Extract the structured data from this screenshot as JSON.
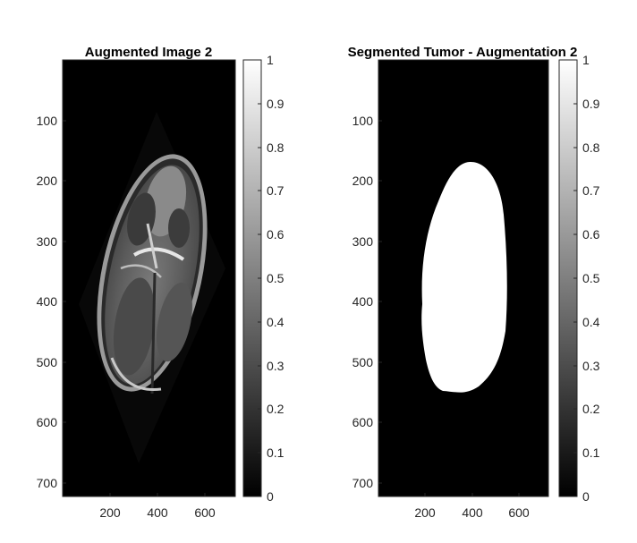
{
  "panels": [
    {
      "title": "Augmented Image 2",
      "content": "mri-scan",
      "y_ticks": [
        "100",
        "200",
        "300",
        "400",
        "500",
        "600",
        "700"
      ],
      "x_ticks": [
        "200",
        "400",
        "600"
      ],
      "colorbar_ticks": [
        "0",
        "0.1",
        "0.2",
        "0.3",
        "0.4",
        "0.5",
        "0.6",
        "0.7",
        "0.8",
        "0.9",
        "1"
      ]
    },
    {
      "title": "Segmented Tumor - Augmentation 2",
      "content": "binary-mask",
      "y_ticks": [
        "100",
        "200",
        "300",
        "400",
        "500",
        "600",
        "700"
      ],
      "x_ticks": [
        "200",
        "400",
        "600"
      ],
      "colorbar_ticks": [
        "0",
        "0.1",
        "0.2",
        "0.3",
        "0.4",
        "0.5",
        "0.6",
        "0.7",
        "0.8",
        "0.9",
        "1"
      ]
    }
  ],
  "colors": {
    "background": "#000000",
    "mask": "#ffffff",
    "axis": "#262626"
  }
}
